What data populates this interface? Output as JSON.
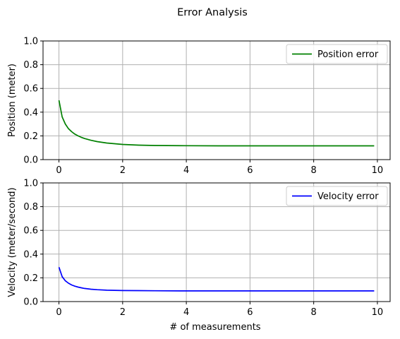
{
  "figure": {
    "title": "Error Analysis"
  },
  "chart_data": [
    {
      "type": "line",
      "xlabel": "",
      "ylabel": "Position (meter)",
      "xlim": [
        -0.5,
        10.4
      ],
      "ylim": [
        0,
        1.0
      ],
      "xticks": [
        0,
        2,
        4,
        6,
        8,
        10
      ],
      "yticks": [
        0.0,
        0.2,
        0.4,
        0.6,
        0.8,
        1.0
      ],
      "grid": true,
      "legend_position": "top-right",
      "series": [
        {
          "name": "Position error",
          "color": "#008000",
          "x": [
            0,
            0.1,
            0.2,
            0.3,
            0.4,
            0.5,
            0.6,
            0.7,
            0.8,
            1.0,
            1.2,
            1.5,
            2.0,
            2.5,
            3.0,
            4.0,
            5.0,
            6.0,
            7.0,
            8.0,
            9.0,
            9.9
          ],
          "y": [
            0.5,
            0.36,
            0.3,
            0.26,
            0.235,
            0.215,
            0.2,
            0.188,
            0.178,
            0.163,
            0.152,
            0.14,
            0.128,
            0.122,
            0.119,
            0.117,
            0.116,
            0.116,
            0.116,
            0.116,
            0.116,
            0.116
          ]
        }
      ]
    },
    {
      "type": "line",
      "xlabel": "# of measurements",
      "ylabel": "Velocity (meter/second)",
      "xlim": [
        -0.5,
        10.4
      ],
      "ylim": [
        0,
        1.0
      ],
      "xticks": [
        0,
        2,
        4,
        6,
        8,
        10
      ],
      "yticks": [
        0.0,
        0.2,
        0.4,
        0.6,
        0.8,
        1.0
      ],
      "grid": true,
      "legend_position": "top-right",
      "series": [
        {
          "name": "Velocity error",
          "color": "#0000ff",
          "x": [
            0,
            0.1,
            0.2,
            0.3,
            0.4,
            0.5,
            0.6,
            0.7,
            0.8,
            1.0,
            1.2,
            1.5,
            2.0,
            2.5,
            3.0,
            4.0,
            5.0,
            6.0,
            7.0,
            8.0,
            9.0,
            9.9
          ],
          "y": [
            0.29,
            0.21,
            0.175,
            0.155,
            0.14,
            0.13,
            0.122,
            0.116,
            0.111,
            0.104,
            0.1,
            0.096,
            0.093,
            0.092,
            0.091,
            0.09,
            0.09,
            0.09,
            0.09,
            0.09,
            0.09,
            0.09
          ]
        }
      ]
    }
  ]
}
